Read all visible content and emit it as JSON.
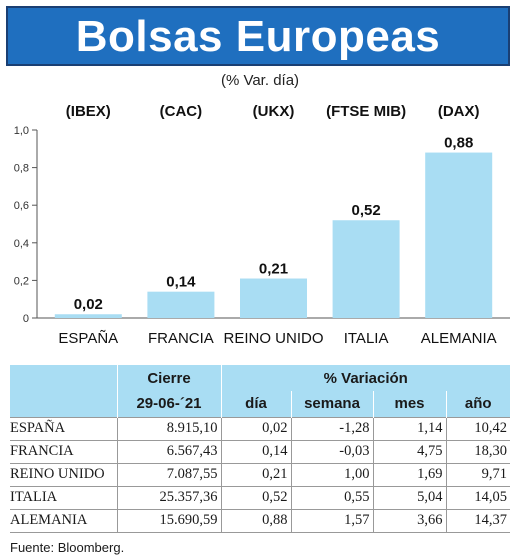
{
  "header": {
    "title": "Bolsas Europeas",
    "subtitle": "(% Var. día)"
  },
  "chart_data": {
    "type": "bar",
    "categories": [
      "ESPAÑA",
      "FRANCIA",
      "REINO UNIDO",
      "ITALIA",
      "ALEMANIA"
    ],
    "indices": [
      "(IBEX)",
      "(CAC)",
      "(UKX)",
      "(FTSE MIB)",
      "(DAX)"
    ],
    "values": [
      0.02,
      0.14,
      0.21,
      0.52,
      0.88
    ],
    "value_labels": [
      "0,02",
      "0,14",
      "0,21",
      "0,52",
      "0,88"
    ],
    "yticks": [
      "0",
      "0,2",
      "0,4",
      "0,6",
      "0,8",
      "1,0"
    ],
    "ylim": [
      0,
      1.0
    ],
    "bar_color": "#a9ddf3",
    "grid": false
  },
  "table": {
    "group_headers": [
      "Cierre",
      "% Variación"
    ],
    "sub_headers": [
      "29-06-´21",
      "día",
      "semana",
      "mes",
      "año"
    ],
    "rows": [
      [
        "ESPAÑA",
        "8.915,10",
        "0,02",
        "-1,28",
        "1,14",
        "10,42"
      ],
      [
        "FRANCIA",
        "6.567,43",
        "0,14",
        "-0,03",
        "4,75",
        "18,30"
      ],
      [
        "REINO UNIDO",
        "7.087,55",
        "0,21",
        "1,00",
        "1,69",
        "9,71"
      ],
      [
        "ITALIA",
        "25.357,36",
        "0,52",
        "0,55",
        "5,04",
        "14,05"
      ],
      [
        "ALEMANIA",
        "15.690,59",
        "0,88",
        "1,57",
        "3,66",
        "14,37"
      ]
    ]
  },
  "source": "Fuente: Bloomberg.",
  "colors": {
    "title_bg": "#1f6fbf",
    "bar": "#a9ddf3",
    "table_header": "#a9ddf3"
  }
}
